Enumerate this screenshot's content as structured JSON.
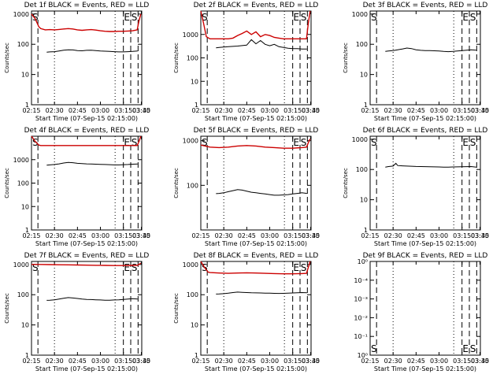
{
  "chart_data": [
    {
      "type": "line",
      "title": "Det 1f BLACK = Events, RED = LLD",
      "xlabel": "Start Time (07-Sep-15 02:15:00)",
      "ylabel": "Counts/sec",
      "xticks": [
        "02:15",
        "02:30",
        "02:45",
        "03:00",
        "03:15",
        "03:30",
        "03:45"
      ],
      "yticks": [
        "1",
        "10",
        "100",
        "1000"
      ],
      "ylog_range": [
        0,
        3.1
      ],
      "markers": [
        "S",
        "E",
        "S"
      ],
      "series": [
        {
          "name": "Events",
          "color": "#000000",
          "x": [
            0.165,
            0.2,
            0.25,
            0.3,
            0.35,
            0.4,
            0.45,
            0.5,
            0.55,
            0.6,
            0.65,
            0.7,
            0.75,
            0.8,
            0.85,
            0.9,
            0.95,
            1.0,
            1.05,
            1.1,
            1.155
          ],
          "y": [
            55,
            56,
            57,
            60,
            64,
            66,
            65,
            62,
            61,
            63,
            64,
            62,
            60,
            59,
            58,
            57,
            56,
            56,
            57,
            58,
            60
          ]
        },
        {
          "name": "LLD",
          "color": "#cc0000",
          "x": [
            0.0,
            0.04,
            0.08,
            0.1,
            0.15,
            0.2,
            0.25,
            0.3,
            0.35,
            0.4,
            0.45,
            0.5,
            0.55,
            0.6,
            0.65,
            0.7,
            0.75,
            0.8,
            0.85,
            0.9,
            0.95,
            1.0,
            1.05,
            1.1,
            1.15,
            1.17,
            1.19
          ],
          "y": [
            1000,
            700,
            380,
            330,
            300,
            305,
            300,
            310,
            320,
            330,
            320,
            300,
            290,
            300,
            305,
            295,
            280,
            270,
            265,
            265,
            270,
            270,
            275,
            280,
            300,
            600,
            1000
          ]
        }
      ]
    },
    {
      "type": "line",
      "title": "Det 2f BLACK = Events, RED = LLD",
      "xlabel": "Start Time (07-Sep-15 02:15:00)",
      "ylabel": "Counts/sec",
      "xticks": [
        "02:15",
        "02:30",
        "02:45",
        "03:00",
        "03:15",
        "03:30",
        "03:45"
      ],
      "yticks": [
        "1",
        "10",
        "100",
        "1000"
      ],
      "ylog_range": [
        0,
        4
      ],
      "markers": [
        "S",
        "E",
        "S"
      ],
      "series": [
        {
          "name": "Events",
          "color": "#000000",
          "x": [
            0.165,
            0.2,
            0.3,
            0.4,
            0.5,
            0.55,
            0.6,
            0.65,
            0.7,
            0.75,
            0.8,
            0.85,
            0.9,
            0.95,
            1.0,
            1.05,
            1.1,
            1.155
          ],
          "y": [
            270,
            280,
            300,
            320,
            350,
            600,
            400,
            550,
            380,
            330,
            380,
            300,
            280,
            260,
            250,
            250,
            240,
            240
          ]
        },
        {
          "name": "LLD",
          "color": "#cc0000",
          "x": [
            0.0,
            0.03,
            0.06,
            0.1,
            0.2,
            0.3,
            0.35,
            0.4,
            0.45,
            0.5,
            0.55,
            0.6,
            0.65,
            0.7,
            0.75,
            0.8,
            0.85,
            0.9,
            1.0,
            1.1,
            1.15,
            1.17,
            1.19
          ],
          "y": [
            10000,
            3000,
            800,
            650,
            650,
            650,
            700,
            900,
            1100,
            1400,
            1000,
            1300,
            800,
            1000,
            900,
            750,
            700,
            650,
            650,
            650,
            650,
            3000,
            10000
          ]
        }
      ]
    },
    {
      "type": "line",
      "title": "Det 3f BLACK = Events, RED = LLD",
      "xlabel": "Start Time (07-Sep-15 02:15:00)",
      "ylabel": "Counts/sec",
      "xticks": [
        "02:15",
        "02:30",
        "02:45",
        "03:00",
        "03:15",
        "03:30",
        "03:45"
      ],
      "yticks": [
        "1",
        "10",
        "100",
        "1000"
      ],
      "ylog_range": [
        0,
        3.1
      ],
      "markers": [
        "S",
        "E",
        "S"
      ],
      "series": [
        {
          "name": "Events",
          "color": "#000000",
          "x": [
            0.165,
            0.2,
            0.25,
            0.3,
            0.35,
            0.4,
            0.45,
            0.5,
            0.55,
            0.6,
            0.65,
            0.7,
            0.75,
            0.8,
            0.85,
            0.9,
            0.95,
            1.0,
            1.05,
            1.1,
            1.155
          ],
          "y": [
            58,
            60,
            62,
            66,
            70,
            75,
            72,
            66,
            63,
            62,
            62,
            61,
            60,
            58,
            57,
            58,
            60,
            62,
            64,
            66,
            64
          ]
        }
      ]
    },
    {
      "type": "line",
      "title": "Det 4f BLACK = Events, RED = LLD",
      "xlabel": "Start Time (07-Sep-15 02:15:00)",
      "ylabel": "Counts/sec",
      "xticks": [
        "02:15",
        "02:30",
        "02:45",
        "03:00",
        "03:15",
        "03:30",
        "03:45"
      ],
      "yticks": [
        "1",
        "10",
        "100",
        "1000"
      ],
      "ylog_range": [
        0,
        4
      ],
      "markers": [
        "S",
        "E",
        "S"
      ],
      "series": [
        {
          "name": "Events",
          "color": "#000000",
          "x": [
            0.165,
            0.2,
            0.25,
            0.3,
            0.35,
            0.4,
            0.45,
            0.5,
            0.55,
            0.6,
            0.65,
            0.7,
            0.75,
            0.8,
            0.85,
            0.9,
            0.95,
            1.0,
            1.05,
            1.1,
            1.155
          ],
          "y": [
            580,
            600,
            620,
            660,
            720,
            760,
            740,
            700,
            680,
            660,
            650,
            640,
            630,
            620,
            610,
            600,
            600,
            610,
            620,
            640,
            650
          ]
        },
        {
          "name": "LLD",
          "color": "#cc0000",
          "x": [
            0.0,
            0.04,
            0.08,
            0.1,
            0.2,
            0.3,
            0.4,
            0.5,
            0.6,
            0.7,
            0.8,
            0.9,
            1.0,
            1.1,
            1.15,
            1.17,
            1.19
          ],
          "y": [
            10000,
            6000,
            4200,
            4000,
            4000,
            4000,
            4000,
            4000,
            4000,
            4000,
            4000,
            4000,
            4000,
            4000,
            4000,
            6000,
            10000
          ]
        }
      ]
    },
    {
      "type": "line",
      "title": "Det 5f BLACK = Events, RED = LLD",
      "xlabel": "Start Time (07-Sep-15 02:15:00)",
      "ylabel": "Counts/sec",
      "xticks": [
        "02:15",
        "02:30",
        "02:45",
        "03:00",
        "03:15",
        "03:30",
        "03:45"
      ],
      "yticks": [
        "100",
        "1000"
      ],
      "ylog_range": [
        1.0,
        3.1
      ],
      "markers": [
        "S",
        "E",
        "S"
      ],
      "series": [
        {
          "name": "Events",
          "color": "#000000",
          "x": [
            0.165,
            0.2,
            0.25,
            0.3,
            0.35,
            0.4,
            0.45,
            0.5,
            0.55,
            0.6,
            0.65,
            0.7,
            0.75,
            0.8,
            0.85,
            0.9,
            0.95,
            1.0,
            1.05,
            1.1,
            1.155
          ],
          "y": [
            65,
            66,
            68,
            72,
            76,
            80,
            78,
            74,
            70,
            68,
            66,
            64,
            62,
            60,
            60,
            61,
            62,
            64,
            66,
            68,
            66
          ]
        },
        {
          "name": "LLD",
          "color": "#cc0000",
          "x": [
            0.0,
            0.1,
            0.2,
            0.3,
            0.4,
            0.5,
            0.6,
            0.7,
            0.8,
            0.9,
            1.0,
            1.1,
            1.15,
            1.17,
            1.19
          ],
          "y": [
            800,
            720,
            700,
            720,
            760,
            780,
            760,
            720,
            700,
            680,
            680,
            700,
            720,
            900,
            1100
          ]
        }
      ]
    },
    {
      "type": "line",
      "title": "Det 6f BLACK = Events, RED = LLD",
      "xlabel": "Start Time (07-Sep-15 02:15:00)",
      "ylabel": "Counts/sec",
      "xticks": [
        "02:15",
        "02:30",
        "02:45",
        "03:00",
        "03:15",
        "03:30",
        "03:45"
      ],
      "yticks": [
        "1",
        "10",
        "100",
        "1000"
      ],
      "ylog_range": [
        0,
        3.1
      ],
      "markers": [
        "S",
        "E",
        "S"
      ],
      "series": [
        {
          "name": "Events",
          "color": "#000000",
          "x": [
            0.165,
            0.2,
            0.25,
            0.28,
            0.3,
            0.35,
            0.4,
            0.45,
            0.5,
            0.55,
            0.6,
            0.65,
            0.7,
            0.75,
            0.8,
            0.85,
            0.9,
            0.95,
            1.0,
            1.05,
            1.1,
            1.155
          ],
          "y": [
            120,
            125,
            130,
            160,
            135,
            132,
            130,
            128,
            126,
            125,
            124,
            123,
            122,
            121,
            120,
            120,
            121,
            122,
            123,
            124,
            125,
            120
          ]
        }
      ]
    },
    {
      "type": "line",
      "title": "Det 7f BLACK = Events, RED = LLD",
      "xlabel": "Start Time (07-Sep-15 02:15:00)",
      "ylabel": "Counts/sec",
      "xticks": [
        "02:15",
        "02:30",
        "02:45",
        "03:00",
        "03:15",
        "03:30",
        "03:45"
      ],
      "yticks": [
        "1",
        "10",
        "100",
        "1000"
      ],
      "ylog_range": [
        0,
        3.1
      ],
      "markers": [
        "S",
        "E",
        "S"
      ],
      "series": [
        {
          "name": "Events",
          "color": "#000000",
          "x": [
            0.165,
            0.2,
            0.25,
            0.3,
            0.35,
            0.4,
            0.45,
            0.5,
            0.55,
            0.6,
            0.65,
            0.7,
            0.75,
            0.8,
            0.85,
            0.9,
            0.95,
            1.0,
            1.05,
            1.1,
            1.155
          ],
          "y": [
            65,
            66,
            68,
            72,
            76,
            80,
            78,
            75,
            72,
            70,
            69,
            68,
            67,
            66,
            66,
            67,
            68,
            70,
            72,
            74,
            72
          ]
        },
        {
          "name": "LLD",
          "color": "#cc0000",
          "x": [
            0.0,
            0.1,
            0.2,
            0.3,
            0.4,
            0.5,
            0.6,
            0.7,
            0.8,
            0.9,
            1.0,
            1.1,
            1.15,
            1.17,
            1.19
          ],
          "y": [
            1000,
            1000,
            990,
            980,
            970,
            960,
            950,
            940,
            930,
            920,
            920,
            930,
            940,
            1000,
            1100
          ]
        }
      ]
    },
    {
      "type": "line",
      "title": "Det 8f BLACK = Events, RED = LLD",
      "xlabel": "Start Time (07-Sep-15 02:15:00)",
      "ylabel": "Counts/sec",
      "xticks": [
        "02:15",
        "02:30",
        "02:45",
        "03:00",
        "03:15",
        "03:30",
        "03:45"
      ],
      "yticks": [
        "1",
        "10",
        "100",
        "1000"
      ],
      "ylog_range": [
        0,
        3.1
      ],
      "markers": [
        "S",
        "E",
        "S"
      ],
      "series": [
        {
          "name": "Events",
          "color": "#000000",
          "x": [
            0.165,
            0.2,
            0.25,
            0.3,
            0.35,
            0.4,
            0.45,
            0.5,
            0.55,
            0.6,
            0.65,
            0.7,
            0.75,
            0.8,
            0.85,
            0.9,
            0.95,
            1.0,
            1.05,
            1.1,
            1.155
          ],
          "y": [
            105,
            106,
            108,
            112,
            118,
            122,
            120,
            118,
            116,
            115,
            114,
            113,
            112,
            111,
            110,
            111,
            112,
            114,
            116,
            118,
            116
          ]
        },
        {
          "name": "LLD",
          "color": "#cc0000",
          "x": [
            0.0,
            0.04,
            0.08,
            0.1,
            0.2,
            0.3,
            0.4,
            0.5,
            0.6,
            0.7,
            0.8,
            0.9,
            1.0,
            1.1,
            1.15,
            1.17,
            1.19
          ],
          "y": [
            1300,
            800,
            560,
            540,
            520,
            510,
            520,
            530,
            520,
            510,
            500,
            490,
            490,
            500,
            510,
            800,
            1300
          ]
        }
      ]
    },
    {
      "type": "line",
      "title": "Det 9f BLACK = Events, RED = LLD",
      "xlabel": "Start Time (07-Sep-15 02:15:00)",
      "ylabel": "",
      "xticks": [
        "02:15",
        "02:30",
        "02:45",
        "03:00",
        "03:15",
        "03:30",
        "03:45"
      ],
      "yticks": [
        "10⁰",
        "10⁻¹",
        "10⁻²",
        "10⁻³",
        "10⁻⁴",
        "10⁰"
      ],
      "markers": [
        "S",
        "E",
        "S"
      ],
      "series": []
    }
  ]
}
